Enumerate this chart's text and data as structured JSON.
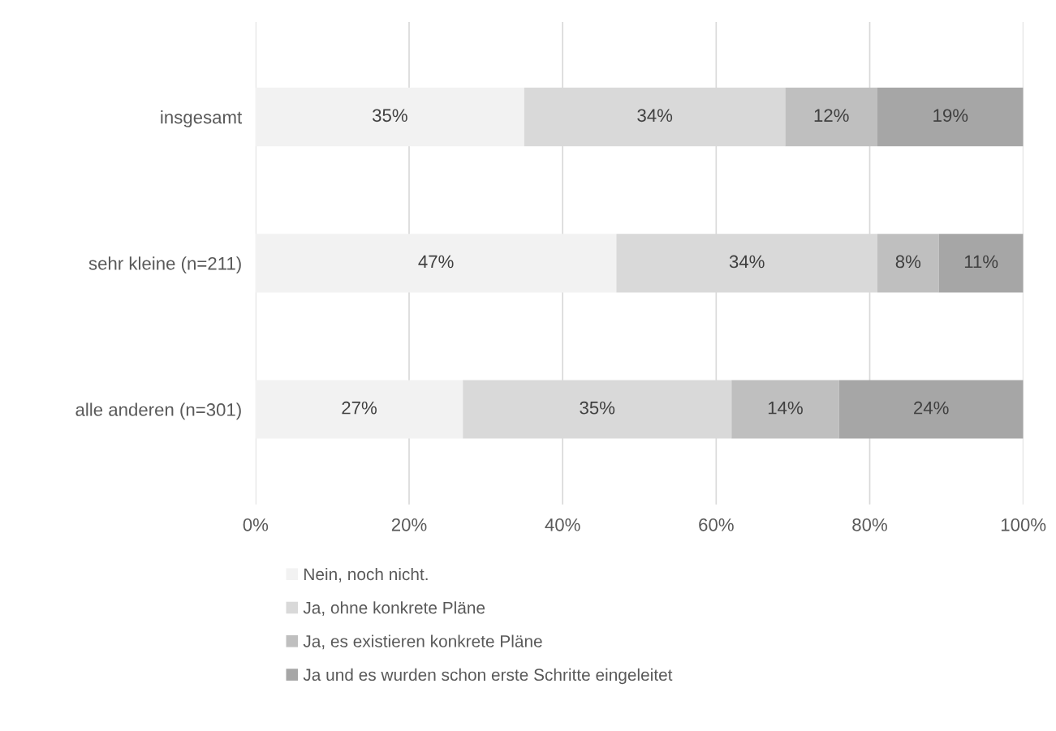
{
  "chart_data": {
    "type": "bar",
    "orientation": "horizontal",
    "stacked": true,
    "categories": [
      "insgesamt",
      "sehr kleine (n=211)",
      "alle anderen (n=301)"
    ],
    "series": [
      {
        "name": "Nein, noch nicht.",
        "color": "#f2f2f2",
        "values": [
          35,
          47,
          27
        ],
        "value_labels": [
          "35%",
          "47%",
          "27%"
        ]
      },
      {
        "name": "Ja, ohne konkrete Pläne",
        "color": "#d9d9d9",
        "values": [
          34,
          34,
          35
        ],
        "value_labels": [
          "34%",
          "34%",
          "35%"
        ]
      },
      {
        "name": "Ja, es existieren konkrete Pläne",
        "color": "#bfbfbf",
        "values": [
          12,
          8,
          14
        ],
        "value_labels": [
          "12%",
          "8%",
          "14%"
        ]
      },
      {
        "name": "Ja und es wurden schon erste Schritte eingeleitet",
        "color": "#a6a6a6",
        "values": [
          19,
          11,
          24
        ],
        "value_labels": [
          "19%",
          "11%",
          "24%"
        ]
      }
    ],
    "xlim": [
      0,
      100
    ],
    "xticks": [
      {
        "value": 0,
        "label": "0%"
      },
      {
        "value": 20,
        "label": "20%"
      },
      {
        "value": 40,
        "label": "40%"
      },
      {
        "value": 60,
        "label": "60%"
      },
      {
        "value": 80,
        "label": "80%"
      },
      {
        "value": 100,
        "label": "100%"
      }
    ],
    "grid": "x",
    "legend": "bottom"
  }
}
